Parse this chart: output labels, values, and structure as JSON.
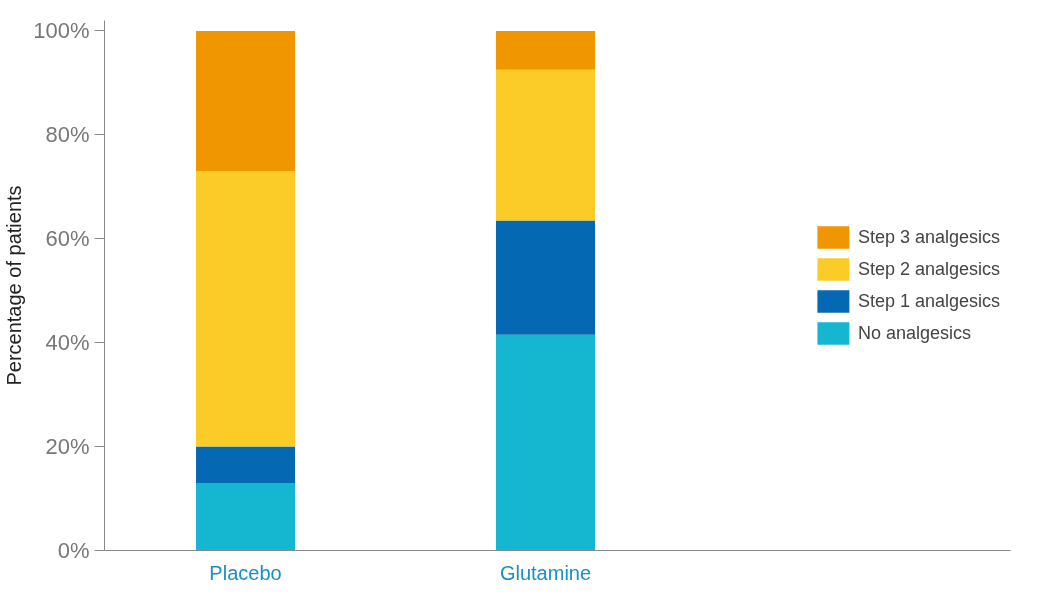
{
  "chart_data": {
    "type": "bar",
    "stacked": true,
    "ylabel": "Percentage of patients",
    "categories": [
      "Placebo",
      "Glutamine"
    ],
    "series": [
      {
        "name": "No analgesics",
        "color": "#15b6d0",
        "values": [
          13,
          41.5
        ]
      },
      {
        "name": "Step 1 analgesics",
        "color": "#0568b3",
        "values": [
          7,
          22
        ]
      },
      {
        "name": "Step 2 analgesics",
        "color": "#fbcb28",
        "values": [
          53,
          29
        ]
      },
      {
        "name": "Step 3 analgesics",
        "color": "#ef9600",
        "values": [
          27,
          7.5
        ]
      }
    ],
    "ylim": [
      0,
      102
    ],
    "yticks": [
      {
        "value": 0,
        "label": "0%"
      },
      {
        "value": 20,
        "label": "20%"
      },
      {
        "value": 40,
        "label": "40%"
      },
      {
        "value": 60,
        "label": "60%"
      },
      {
        "value": 80,
        "label": "80%"
      },
      {
        "value": 100,
        "label": "100%"
      }
    ],
    "grid": false,
    "legend": "right"
  }
}
